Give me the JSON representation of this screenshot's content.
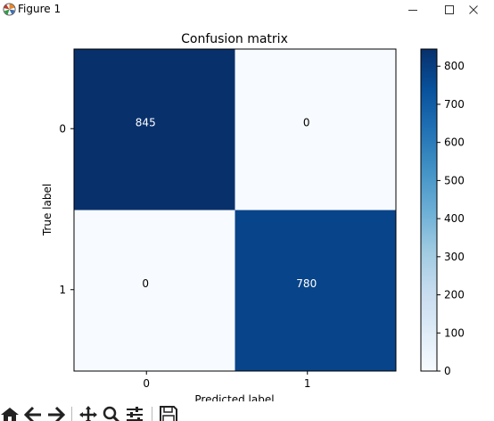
{
  "window": {
    "title": "Figure 1",
    "icon": "matplotlib-logo-icon",
    "controls": [
      "minimize-icon",
      "maximize-icon",
      "close-icon"
    ]
  },
  "chart_data": {
    "type": "heatmap",
    "title": "Confusion matrix",
    "xlabel": "Predicted label",
    "ylabel": "True label",
    "x_categories": [
      "0",
      "1"
    ],
    "y_categories": [
      "0",
      "1"
    ],
    "values": [
      [
        845,
        0
      ],
      [
        0,
        780
      ]
    ],
    "colormap": "Blues",
    "colorbar": {
      "min": 0,
      "max": 845,
      "ticks": [
        0,
        100,
        200,
        300,
        400,
        500,
        600,
        700,
        800
      ]
    },
    "colors": {
      "high": "#08306b",
      "low": "#f7fbff",
      "high_text": "#ffffff",
      "low_text": "#000000"
    }
  },
  "toolbar": {
    "buttons": [
      "home-icon",
      "back-arrow-icon",
      "forward-arrow-icon",
      "pan-icon",
      "zoom-icon",
      "configure-subplots-icon",
      "save-icon"
    ]
  }
}
